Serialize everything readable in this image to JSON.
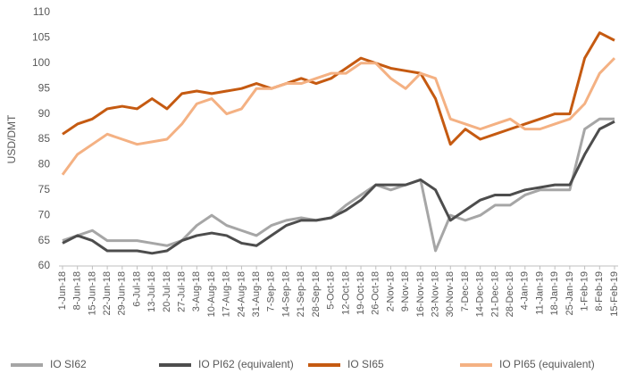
{
  "chart_data": {
    "type": "line",
    "ylabel": "USD/DMT",
    "categories": [
      "1-Jun-18",
      "8-Jun-18",
      "15-Jun-18",
      "22-Jun-18",
      "29-Jun-18",
      "6-Jul-18",
      "13-Jul-18",
      "20-Jul-18",
      "27-Jul-18",
      "3-Aug-18",
      "10-Aug-18",
      "17-Aug-18",
      "24-Aug-18",
      "31-Aug-18",
      "7-Sep-18",
      "14-Sep-18",
      "21-Sep-18",
      "28-Sep-18",
      "5-Oct-18",
      "12-Oct-18",
      "19-Oct-18",
      "26-Oct-18",
      "2-Nov-18",
      "9-Nov-18",
      "16-Nov-18",
      "23-Nov-18",
      "30-Nov-18",
      "7-Dec-18",
      "14-Dec-18",
      "21-Dec-18",
      "28-Dec-18",
      "4-Jan-19",
      "11-Jan-19",
      "18-Jan-19",
      "25-Jan-19",
      "1-Feb-19",
      "8-Feb-19",
      "15-Feb-19"
    ],
    "series": [
      {
        "name": "IO SI62",
        "color": "#a6a6a6",
        "values": [
          65,
          66,
          67,
          65,
          65,
          65,
          64.5,
          64,
          65,
          68,
          70,
          68,
          67,
          66,
          68,
          69,
          69.5,
          69,
          69.5,
          72,
          74,
          76,
          75,
          76,
          77,
          63,
          70,
          69,
          70,
          72,
          72,
          74,
          75,
          75,
          75,
          87,
          89,
          89
        ]
      },
      {
        "name": "IO PI62 (equivalent)",
        "color": "#4d4d4d",
        "values": [
          64.5,
          66,
          65,
          63,
          63,
          63,
          62.5,
          63,
          65,
          66,
          66.5,
          66,
          64.5,
          64,
          66,
          68,
          69,
          69,
          69.5,
          71,
          73,
          76,
          76,
          76,
          77,
          75,
          69,
          71,
          73,
          74,
          74,
          75,
          75.5,
          76,
          76,
          82,
          87,
          88.5
        ]
      },
      {
        "name": "IO SI65",
        "color": "#c55a11",
        "values": [
          86,
          88,
          89,
          91,
          91.5,
          91,
          93,
          91,
          94,
          94.5,
          94,
          94.5,
          95,
          96,
          95,
          96,
          97,
          96,
          97,
          99,
          101,
          100,
          99,
          98.5,
          98,
          93,
          84,
          87,
          85,
          86,
          87,
          88,
          89,
          90,
          90,
          101,
          106,
          104.5
        ]
      },
      {
        "name": "IO PI65 (equivalent)",
        "color": "#f4b183",
        "values": [
          78,
          82,
          84,
          86,
          85,
          84,
          84.5,
          85,
          88,
          92,
          93,
          90,
          91,
          95,
          95,
          96,
          96,
          97,
          98,
          98,
          100,
          100,
          97,
          95,
          98,
          97,
          89,
          88,
          87,
          88,
          89,
          87,
          87,
          88,
          89,
          92,
          98,
          101
        ]
      }
    ],
    "ylim": [
      60,
      110
    ],
    "yticks": [
      60,
      65,
      70,
      75,
      80,
      85,
      90,
      95,
      100,
      105,
      110
    ],
    "grid": false,
    "legend": "bottom"
  }
}
